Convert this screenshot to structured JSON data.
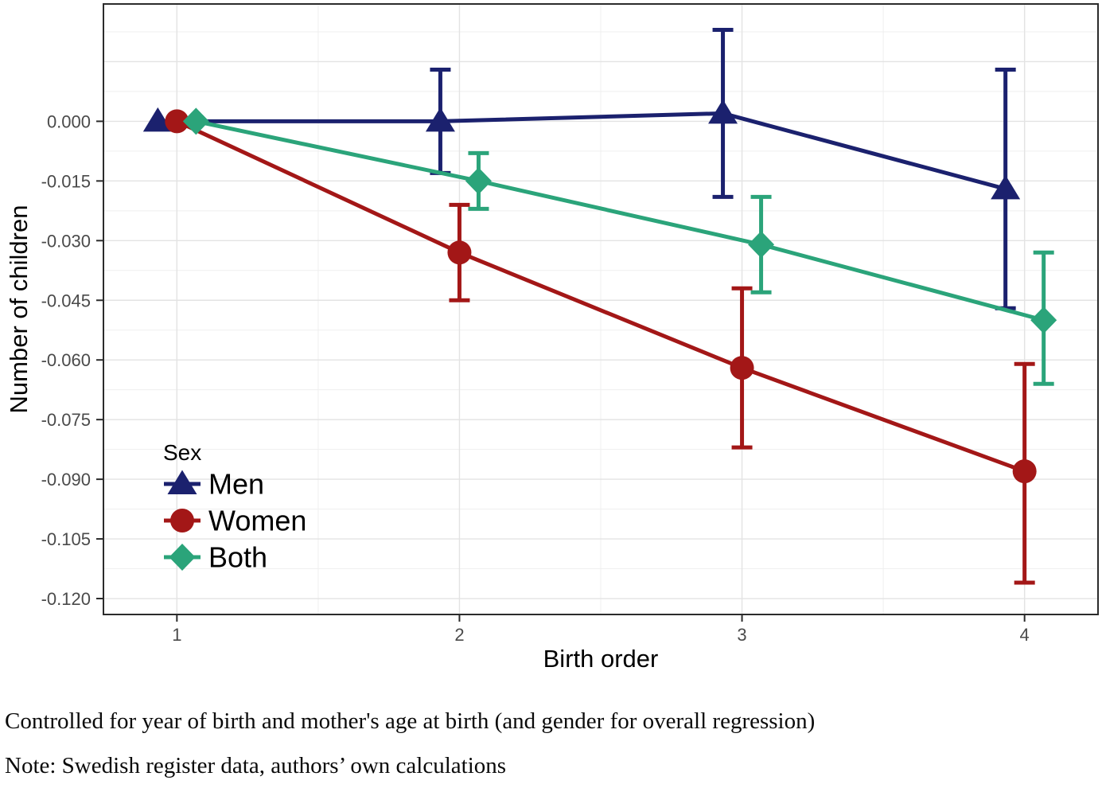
{
  "figure": {
    "captions": [
      "Controlled for year of birth and mother's age at birth (and gender for overall regression)",
      "Note: Swedish register data, authors’ own calculations"
    ]
  },
  "chart_data": {
    "type": "line",
    "title": "",
    "xlabel": "Birth order",
    "ylabel": "Number of children",
    "x": [
      1,
      2,
      3,
      4
    ],
    "xtick_labels": [
      "1",
      "2",
      "3",
      "4"
    ],
    "xlim": [
      0.74,
      4.26
    ],
    "ylim": [
      -0.124,
      0.0295
    ],
    "yticks": [
      0.0,
      -0.015,
      -0.03,
      -0.045,
      -0.06,
      -0.075,
      -0.09,
      -0.105,
      -0.12
    ],
    "ytick_labels": [
      "0.000",
      "-0.015",
      "-0.030",
      "-0.045",
      "-0.060",
      "-0.075",
      "-0.090",
      "-0.105",
      "-0.120"
    ],
    "grid": "major+minor",
    "grid_minor_y": [
      -0.1125,
      -0.0975,
      -0.0825,
      -0.0675,
      -0.0525,
      -0.0375,
      -0.0225,
      -0.0075,
      0.0075,
      0.0225
    ],
    "grid_major_y": [
      -0.12,
      -0.105,
      -0.09,
      -0.075,
      -0.06,
      -0.045,
      -0.03,
      -0.015,
      0.0,
      0.015
    ],
    "grid_minor_x": [
      1.5,
      2.5,
      3.5
    ],
    "legend": {
      "title": "Sex",
      "position": "inside-bottom-left",
      "items": [
        "Men",
        "Women",
        "Both"
      ]
    },
    "colors": {
      "men": "#1B216E",
      "women": "#A31717",
      "both": "#2BA47A",
      "grid_major": "#E3E3E3",
      "grid_minor": "#EFEFEF",
      "panel_border": "#2B2B2B",
      "tick_label": "#4A4A4A",
      "axis_title": "#000000"
    },
    "series": [
      {
        "name": "Men",
        "marker": "triangle",
        "color": "#1B216E",
        "dodge": -0.0676,
        "values": [
          0.0,
          0.0,
          0.002,
          -0.017
        ],
        "ci_low": [
          null,
          -0.013,
          -0.019,
          -0.047
        ],
        "ci_high": [
          null,
          0.013,
          0.023,
          0.013
        ]
      },
      {
        "name": "Women",
        "marker": "circle",
        "color": "#A31717",
        "dodge": 0,
        "values": [
          0.0,
          -0.033,
          -0.062,
          -0.088
        ],
        "ci_low": [
          null,
          -0.045,
          -0.082,
          -0.116
        ],
        "ci_high": [
          null,
          -0.021,
          -0.042,
          -0.061
        ]
      },
      {
        "name": "Both",
        "marker": "diamond",
        "color": "#2BA47A",
        "dodge": 0.0676,
        "values": [
          0.0,
          -0.015,
          -0.031,
          -0.05
        ],
        "ci_low": [
          null,
          -0.022,
          -0.043,
          -0.066
        ],
        "ci_high": [
          null,
          -0.008,
          -0.019,
          -0.033
        ]
      }
    ]
  }
}
